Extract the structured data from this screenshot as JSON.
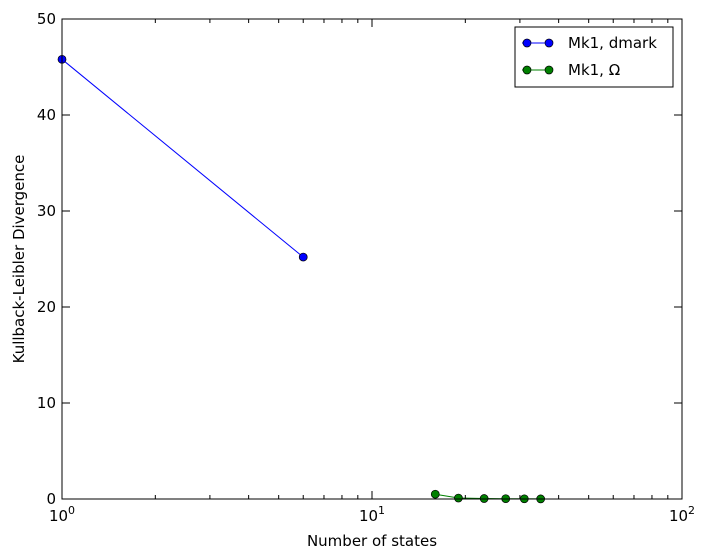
{
  "chart_data": {
    "type": "line",
    "title": "",
    "xlabel": "Number of states",
    "ylabel": "Kullback-Leibler Divergence",
    "xscale": "log",
    "xlim": [
      1,
      100
    ],
    "ylim": [
      0,
      50
    ],
    "x_ticks": [
      {
        "value": 1,
        "base": "10",
        "exp": "0"
      },
      {
        "value": 10,
        "base": "10",
        "exp": "1"
      },
      {
        "value": 100,
        "base": "10",
        "exp": "2"
      }
    ],
    "y_ticks": [
      {
        "value": 0,
        "label": "0"
      },
      {
        "value": 10,
        "label": "10"
      },
      {
        "value": 20,
        "label": "20"
      },
      {
        "value": 30,
        "label": "30"
      },
      {
        "value": 40,
        "label": "40"
      },
      {
        "value": 50,
        "label": "50"
      }
    ],
    "grid": false,
    "legend_position": "top-right",
    "series": [
      {
        "name": "Mk1, dmark",
        "color": "#0000ff",
        "marker": "circle",
        "points": [
          {
            "x": 1,
            "y": 45.8
          },
          {
            "x": 6,
            "y": 25.2
          }
        ]
      },
      {
        "name": "Mk1, Ω",
        "color": "#008000",
        "marker": "circle",
        "points": [
          {
            "x": 16,
            "y": 0.5
          },
          {
            "x": 19,
            "y": 0.1
          },
          {
            "x": 23,
            "y": 0.05
          },
          {
            "x": 27,
            "y": 0.03
          },
          {
            "x": 31,
            "y": 0.02
          },
          {
            "x": 35,
            "y": 0.01
          }
        ]
      }
    ]
  }
}
